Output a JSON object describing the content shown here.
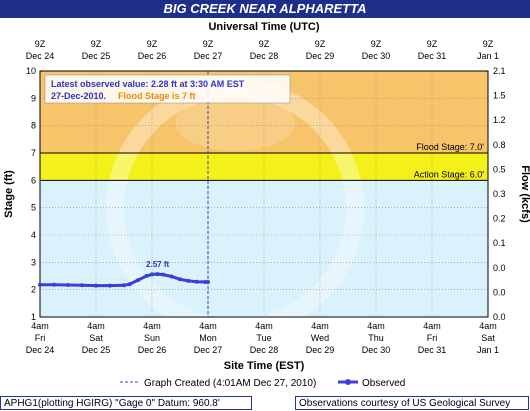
{
  "title": "BIG CREEK NEAR ALPHARETTA",
  "colors": {
    "title_bg": "#1e2f8a",
    "flood_zone": "#f7c46a",
    "action_zone": "#f3f01a",
    "normal_zone": "#d9f2fb",
    "observed_line": "#3b3fd8",
    "annotation_blue": "#2c34c9",
    "annotation_orange": "#f08a00"
  },
  "footer": {
    "left_text": "APHG1(plotting HGIRG) \"Gage 0\" Datum: 960.8'",
    "right_text": "Observations courtesy of US Geological Survey"
  },
  "chart_data": {
    "type": "line",
    "title": "BIG CREEK NEAR ALPHARETTA",
    "top_axis_title": "Universal Time (UTC)",
    "top_tick_labels": [
      {
        "line1": "9Z",
        "line2": "Dec 24"
      },
      {
        "line1": "9Z",
        "line2": "Dec 25"
      },
      {
        "line1": "9Z",
        "line2": "Dec 26"
      },
      {
        "line1": "9Z",
        "line2": "Dec 27"
      },
      {
        "line1": "9Z",
        "line2": "Dec 28"
      },
      {
        "line1": "9Z",
        "line2": "Dec 29"
      },
      {
        "line1": "9Z",
        "line2": "Dec 30"
      },
      {
        "line1": "9Z",
        "line2": "Dec 31"
      },
      {
        "line1": "9Z",
        "line2": "Jan 1"
      }
    ],
    "xlabel": "Site Time (EST)",
    "bottom_tick_labels": [
      {
        "line1": "4am",
        "line2": "Fri",
        "line3": "Dec 24"
      },
      {
        "line1": "4am",
        "line2": "Sat",
        "line3": "Dec 25"
      },
      {
        "line1": "4am",
        "line2": "Sun",
        "line3": "Dec 26"
      },
      {
        "line1": "4am",
        "line2": "Mon",
        "line3": "Dec 27"
      },
      {
        "line1": "4am",
        "line2": "Tue",
        "line3": "Dec 28"
      },
      {
        "line1": "4am",
        "line2": "Wed",
        "line3": "Dec 29"
      },
      {
        "line1": "4am",
        "line2": "Thu",
        "line3": "Dec 30"
      },
      {
        "line1": "4am",
        "line2": "Fri",
        "line3": "Dec 31"
      },
      {
        "line1": "4am",
        "line2": "Sat",
        "line3": "Jan 1"
      }
    ],
    "ylabel": "Stage (ft)",
    "ylim": [
      1,
      10
    ],
    "yticks": [
      1,
      2,
      3,
      4,
      5,
      6,
      7,
      8,
      9,
      10
    ],
    "y2label": "Flow (kcfs)",
    "y2ticks": [
      "0.0",
      "0.0",
      "0.0",
      "0.1",
      "0.2",
      "0.3",
      "0.5",
      "0.8",
      "1.2",
      "1.5",
      "2.1"
    ],
    "grid": true,
    "flood_stage": 7.0,
    "action_stage": 6.0,
    "flood_stage_label": "Flood Stage: 7.0'",
    "action_stage_label": "Action Stage: 6.0'",
    "peak_label": "2.57 ft",
    "latest_box": {
      "line1": "Latest observed value: 2.28 ft at 3:30 AM EST",
      "line2_date": "27-Dec-2010.",
      "line2_flood": "Flood Stage is 7 ft"
    },
    "legend_graph_created": "Graph Created (4:01AM Dec 27, 2010)",
    "legend_observed": "Observed",
    "series": [
      {
        "name": "Observed",
        "x_days": [
          0,
          0.25,
          0.5,
          0.75,
          1.0,
          1.25,
          1.5,
          1.6,
          1.75,
          1.9,
          2.0,
          2.1,
          2.2,
          2.35,
          2.5,
          2.65,
          2.8,
          2.95,
          3.0
        ],
        "values": [
          2.18,
          2.18,
          2.17,
          2.16,
          2.15,
          2.15,
          2.16,
          2.2,
          2.35,
          2.5,
          2.56,
          2.57,
          2.55,
          2.48,
          2.38,
          2.32,
          2.29,
          2.28,
          2.28
        ]
      }
    ]
  }
}
